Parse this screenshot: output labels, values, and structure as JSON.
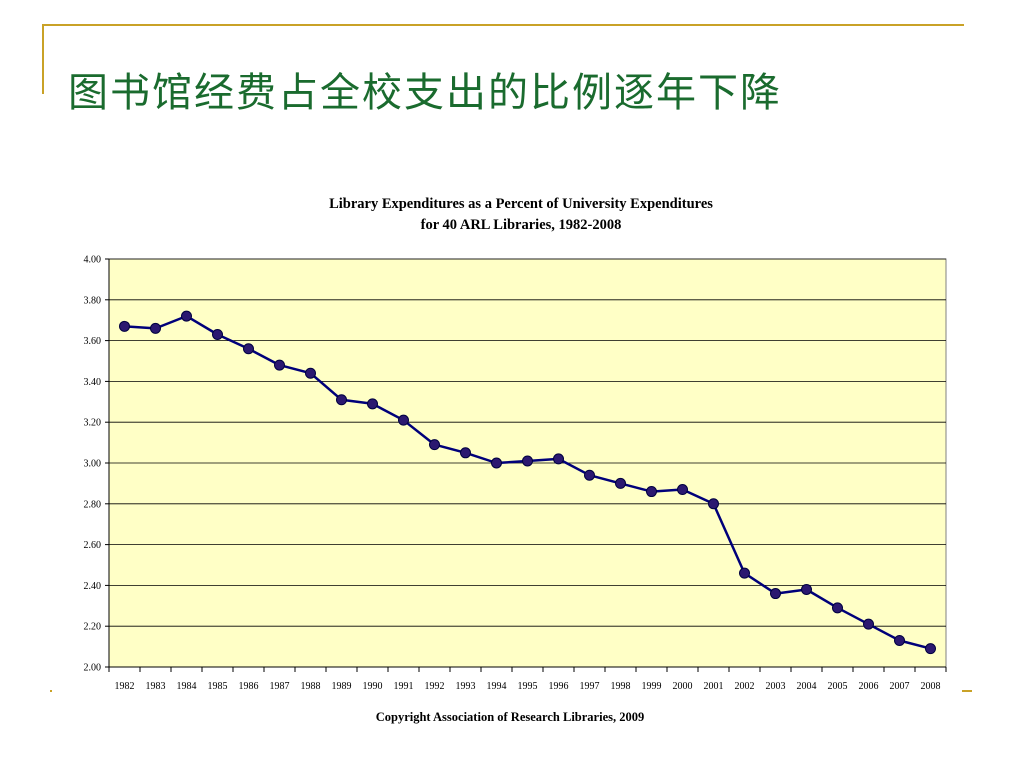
{
  "slide": {
    "title": "图书馆经费占全校支出的比例逐年下降",
    "colors": {
      "title": "#1a6b2e",
      "frame": "#c9a227"
    }
  },
  "chart_data": {
    "type": "line",
    "title_line1": "Library Expenditures as a Percent of University Expenditures",
    "title_line2": "for 40 ARL Libraries, 1982-2008",
    "footer": "Copyright Association of Research Libraries, 2009",
    "x": [
      "1982",
      "1983",
      "1984",
      "1985",
      "1986",
      "1987",
      "1988",
      "1989",
      "1990",
      "1991",
      "1992",
      "1993",
      "1994",
      "1995",
      "1996",
      "1997",
      "1998",
      "1999",
      "2000",
      "2001",
      "2002",
      "2003",
      "2004",
      "2005",
      "2006",
      "2007",
      "2008"
    ],
    "series": [
      {
        "values": [
          3.67,
          3.66,
          3.72,
          3.63,
          3.56,
          3.48,
          3.44,
          3.31,
          3.29,
          3.21,
          3.09,
          3.05,
          3.0,
          3.01,
          3.02,
          2.94,
          2.9,
          2.86,
          2.87,
          2.8,
          2.46,
          2.36,
          2.38,
          2.29,
          2.21,
          2.13,
          2.09
        ],
        "line_color": "#00007a",
        "marker_color": "#2b1870"
      }
    ],
    "y_ticks": [
      "2.00",
      "2.20",
      "2.40",
      "2.60",
      "2.80",
      "3.00",
      "3.20",
      "3.40",
      "3.60",
      "3.80",
      "4.00"
    ],
    "ylim": [
      2.0,
      4.0
    ],
    "grid": true,
    "plot_background": "#ffffc6"
  }
}
